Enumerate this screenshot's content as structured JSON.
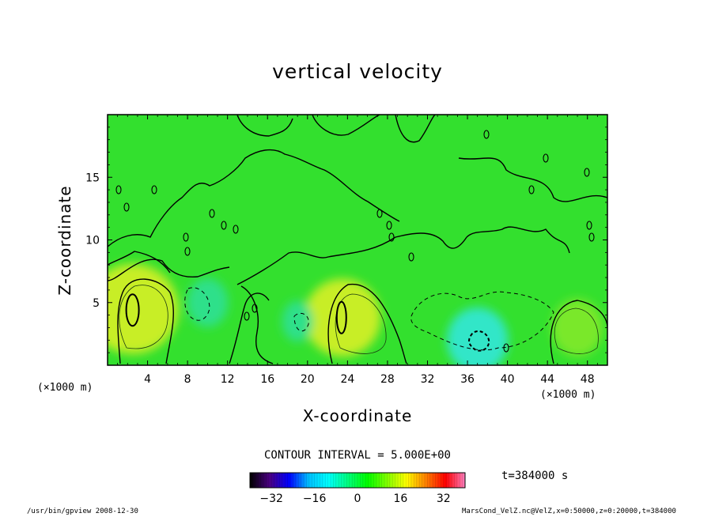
{
  "chart_data": {
    "type": "heatmap",
    "title": "vertical velocity",
    "xlabel": "X-coordinate",
    "ylabel": "Z-coordinate",
    "x_unit_label": "(×1000 m)",
    "xlim": [
      0,
      50
    ],
    "ylim": [
      0,
      20
    ],
    "x_ticks": [
      4,
      8,
      12,
      16,
      20,
      24,
      28,
      32,
      36,
      40,
      44,
      48
    ],
    "y_ticks": [
      5,
      10,
      15
    ],
    "contour_interval_label": "CONTOUR INTERVAL = 5.000E+00",
    "colorbar": {
      "range": [
        -40,
        40
      ],
      "ticks": [
        -32,
        -16,
        0,
        16,
        32
      ],
      "colors": [
        "#000000",
        "#4b0082",
        "#0000ff",
        "#00bfff",
        "#00ffff",
        "#00ff80",
        "#00ff00",
        "#80ff00",
        "#ffff00",
        "#ff8000",
        "#ff0000",
        "#ff80c0"
      ]
    },
    "field_color_stops": {
      "background": "#33e02e",
      "positive": [
        "#7ae82a",
        "#c8ee28"
      ],
      "negative": [
        "#2de08a",
        "#30e6c8"
      ]
    },
    "cells_description": "approximate field values in data units",
    "features": [
      {
        "x": 2.5,
        "z": 4.5,
        "value": 15
      },
      {
        "x": 23.5,
        "z": 3.8,
        "value": 12
      },
      {
        "x": 47,
        "z": 3,
        "value": 7
      },
      {
        "x": 37,
        "z": 2,
        "value": -9
      },
      {
        "x": 10,
        "z": 5,
        "value": -5
      },
      {
        "x": 19,
        "z": 3.5,
        "value": -3
      }
    ],
    "time_label": "t=384000 s"
  },
  "footer": {
    "left": "/usr/bin/gpview   2008-12-30",
    "right": "MarsCond_VelZ.nc@VelZ,x=0:50000,z=0:20000,t=384000"
  }
}
